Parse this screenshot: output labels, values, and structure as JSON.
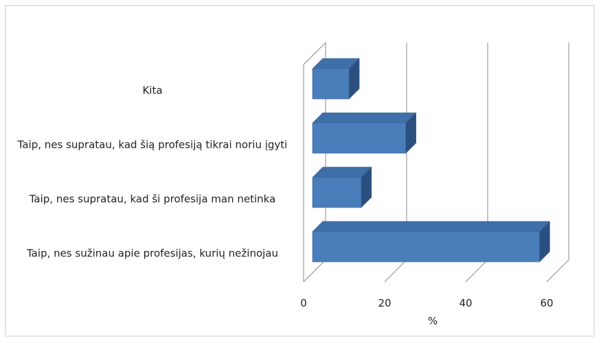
{
  "chart_data": {
    "type": "bar3d_horizontal",
    "categories": [
      "Kita",
      "Taip, nes supratau, kad šią profesiją tikrai noriu įgyti",
      "Taip, nes supratau, kad ši profesija man netinka",
      "Taip, nes sužinau apie profesijas, kurių nežinojau"
    ],
    "values": [
      9,
      23,
      12,
      56
    ],
    "color": "#4a7ebb",
    "xlabel": "%",
    "xlim": [
      0,
      60
    ],
    "xticks": [
      0,
      20,
      40,
      60
    ],
    "grid": true
  }
}
